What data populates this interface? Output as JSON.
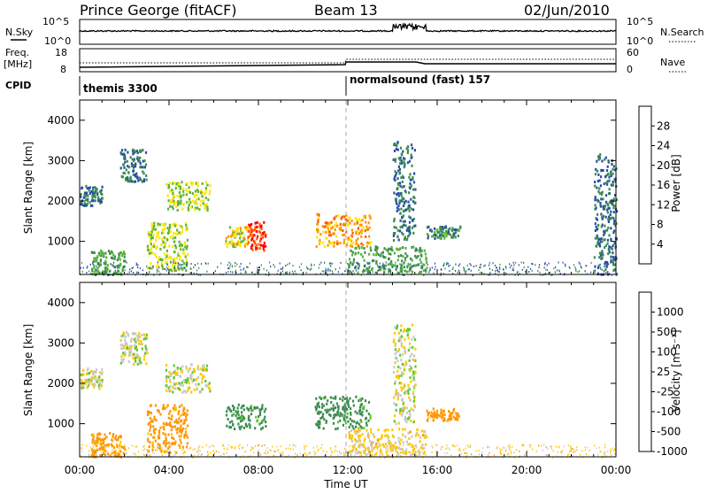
{
  "header": {
    "station": "Prince George (fitACF)",
    "beam": "Beam 13",
    "date": "02/Jun/2010"
  },
  "top_panels": {
    "nsky_label": "N.Sky",
    "nsky_ticks": [
      "10^5",
      "10^0"
    ],
    "nsearch_label": "N.Search",
    "nsearch_ticks": [
      "10^5",
      "10^0"
    ],
    "freq_label": "Freq.",
    "freq_unit": "[MHz]",
    "freq_ticks": [
      "18",
      "8"
    ],
    "nave_label": "Nave",
    "nave_ticks": [
      "60",
      "0"
    ],
    "cpid_label": "CPID",
    "cpid_segments": [
      {
        "name": "themis 3300",
        "start_hour": 0
      },
      {
        "name": "normalsound (fast) 157",
        "start_hour": 12
      }
    ]
  },
  "axes": {
    "y_label": "Slant Range [km]",
    "y_ticks": [
      "1000",
      "2000",
      "3000",
      "4000"
    ],
    "x_label": "Time UT",
    "x_ticks": [
      "00:00",
      "04:00",
      "08:00",
      "12:00",
      "16:00",
      "20:00",
      "00:00"
    ]
  },
  "power_scale": {
    "label": "Power [dB]",
    "ticks": [
      "28",
      "24",
      "20",
      "16",
      "12",
      "8",
      "4"
    ],
    "colors": [
      "#ff0000",
      "#ff5a00",
      "#ff9600",
      "#ffe600",
      "#5ab43c",
      "#3c8c50",
      "#2850a0",
      "#0000ff"
    ]
  },
  "velocity_scale": {
    "label": "Velocity [m s⁻¹]",
    "ticks": [
      "1000",
      "500",
      "100",
      "25",
      "-25",
      "-100",
      "-500",
      "-1000"
    ],
    "colors": [
      "#1e3ca0",
      "#3c8c50",
      "#5ac832",
      "#c8c8c8",
      "#ffc800",
      "#ff9600",
      "#ff5000",
      "#ff0000"
    ]
  },
  "chart_data": [
    {
      "type": "heatmap",
      "title": "Power",
      "xlabel": "Time UT",
      "ylabel": "Slant Range [km]",
      "xlim_hours": [
        0,
        24
      ],
      "ylim_km": [
        180,
        4500
      ],
      "colorbar_label": "Power [dB]",
      "colorbar_ticks": [
        4,
        8,
        12,
        16,
        20,
        24,
        28
      ],
      "regions": [
        {
          "t": [
            0.0,
            1.0
          ],
          "r": [
            1900,
            2400
          ],
          "value_db": 6
        },
        {
          "t": [
            0.5,
            2.0
          ],
          "r": [
            200,
            800
          ],
          "value_db": 10
        },
        {
          "t": [
            1.8,
            3.0
          ],
          "r": [
            2500,
            3300
          ],
          "value_db": 6
        },
        {
          "t": [
            3.0,
            4.8
          ],
          "r": [
            300,
            1500
          ],
          "value_db": 14
        },
        {
          "t": [
            3.8,
            5.8
          ],
          "r": [
            1800,
            2500
          ],
          "value_db": 14
        },
        {
          "t": [
            6.5,
            7.5
          ],
          "r": [
            900,
            1400
          ],
          "value_db": 16
        },
        {
          "t": [
            7.5,
            8.3
          ],
          "r": [
            800,
            1500
          ],
          "value_db": 26
        },
        {
          "t": [
            10.5,
            13.0
          ],
          "r": [
            900,
            1700
          ],
          "value_db": 20
        },
        {
          "t": [
            12.0,
            15.5
          ],
          "r": [
            250,
            900
          ],
          "value_db": 10
        },
        {
          "t": [
            14.0,
            15.0
          ],
          "r": [
            1000,
            3500
          ],
          "value_db": 6
        },
        {
          "t": [
            15.5,
            17.0
          ],
          "r": [
            1100,
            1400
          ],
          "value_db": 8
        },
        {
          "t": [
            0.0,
            24.0
          ],
          "r": [
            180,
            500
          ],
          "value_db": 6
        },
        {
          "t": [
            23.0,
            24.0
          ],
          "r": [
            200,
            3200
          ],
          "value_db": 6
        }
      ]
    },
    {
      "type": "heatmap",
      "title": "Velocity",
      "xlabel": "Time UT",
      "ylabel": "Slant Range [km]",
      "xlim_hours": [
        0,
        24
      ],
      "ylim_km": [
        180,
        4500
      ],
      "colorbar_label": "Velocity [m s⁻¹]",
      "colorbar_ticks": [
        -1000,
        -500,
        -100,
        -25,
        25,
        100,
        500,
        1000
      ],
      "regions": [
        {
          "t": [
            0.0,
            1.0
          ],
          "r": [
            1900,
            2400
          ],
          "value_ms": 0
        },
        {
          "t": [
            0.5,
            2.0
          ],
          "r": [
            200,
            800
          ],
          "value_ms": -150
        },
        {
          "t": [
            1.8,
            3.0
          ],
          "r": [
            2500,
            3300
          ],
          "value_ms": 0
        },
        {
          "t": [
            3.0,
            4.8
          ],
          "r": [
            300,
            1500
          ],
          "value_ms": -150
        },
        {
          "t": [
            3.8,
            5.8
          ],
          "r": [
            1800,
            2500
          ],
          "value_ms": 0
        },
        {
          "t": [
            6.5,
            8.3
          ],
          "r": [
            900,
            1500
          ],
          "value_ms": 150
        },
        {
          "t": [
            10.5,
            13.0
          ],
          "r": [
            900,
            1700
          ],
          "value_ms": 150
        },
        {
          "t": [
            12.0,
            15.5
          ],
          "r": [
            250,
            900
          ],
          "value_ms": -50
        },
        {
          "t": [
            14.0,
            15.0
          ],
          "r": [
            1000,
            3500
          ],
          "value_ms": 0
        },
        {
          "t": [
            15.5,
            17.0
          ],
          "r": [
            1100,
            1400
          ],
          "value_ms": -150
        },
        {
          "t": [
            0.0,
            24.0
          ],
          "r": [
            180,
            500
          ],
          "value_ms": -50
        }
      ]
    }
  ]
}
